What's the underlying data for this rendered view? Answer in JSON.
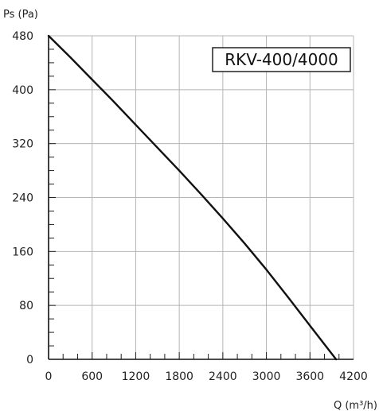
{
  "chart_data": {
    "type": "line",
    "title": "RKV-400/4000",
    "xlabel": "Q (m³/h)",
    "ylabel": "Ps (Pa)",
    "xlim": [
      0,
      4200
    ],
    "ylim": [
      0,
      480
    ],
    "x_ticks": [
      0,
      600,
      1200,
      1800,
      2400,
      3000,
      3600,
      4200
    ],
    "y_ticks": [
      0,
      80,
      160,
      240,
      320,
      400,
      480
    ],
    "x_minor_step": 200,
    "y_minor_step": 20,
    "grid": true,
    "series": [
      {
        "color": "#111111",
        "x": [
          0,
          300,
          600,
          900,
          1200,
          1500,
          1800,
          2100,
          2400,
          2700,
          3000,
          3300,
          3600,
          3960
        ],
        "y": [
          480,
          448,
          415,
          382,
          348,
          314,
          280,
          245,
          209,
          172,
          133,
          92,
          50,
          0
        ]
      }
    ]
  }
}
